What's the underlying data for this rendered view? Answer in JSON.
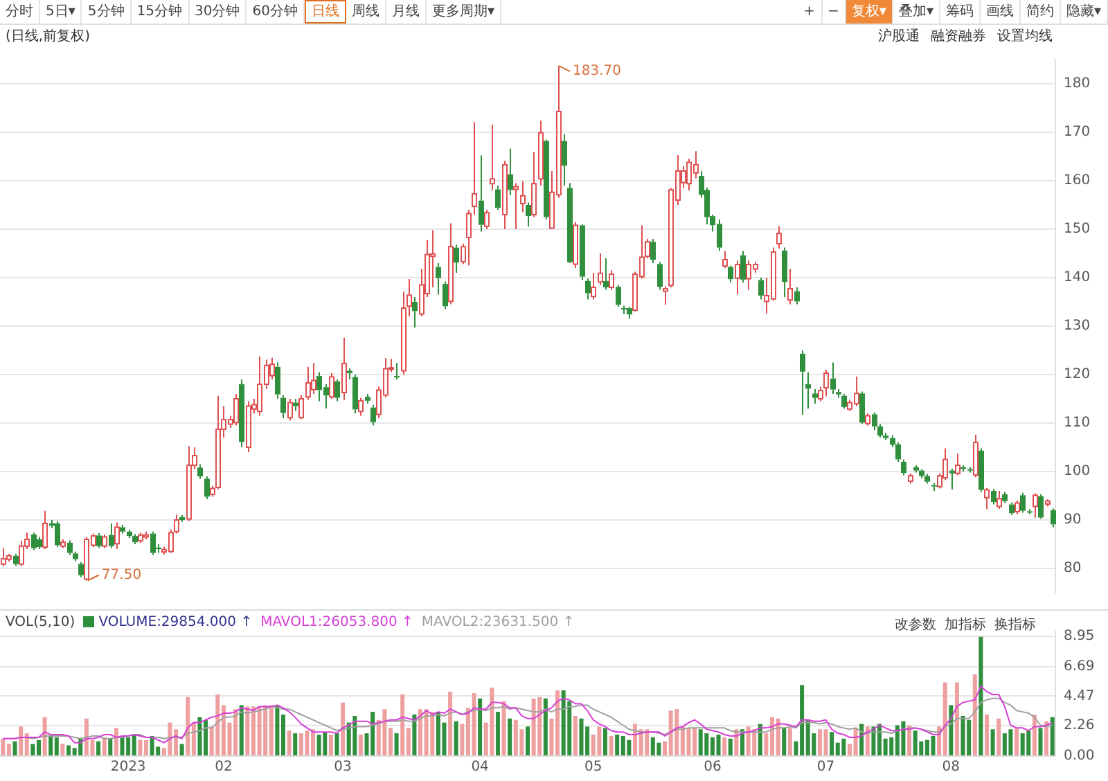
{
  "chart_data": [
    {
      "type": "candlestick",
      "title": "(日线,前复权)",
      "categories": [
        null,
        null,
        null,
        null,
        null,
        null,
        null,
        null,
        null,
        null,
        null,
        null,
        null,
        null,
        null,
        null,
        null,
        null,
        null,
        null,
        null,
        null,
        null,
        null,
        null,
        null,
        null,
        null,
        null,
        null,
        null,
        null,
        null,
        null,
        null,
        null,
        null,
        null,
        null,
        null,
        null,
        null,
        null,
        null,
        null,
        null,
        null,
        null,
        null,
        null,
        null,
        null,
        null,
        null,
        null,
        null,
        null,
        null,
        null,
        null,
        null,
        null,
        null,
        null,
        null,
        null,
        null,
        null,
        null,
        null,
        null,
        null,
        null,
        null,
        null,
        null,
        null,
        null,
        null,
        null,
        null,
        null,
        null,
        null,
        null,
        null,
        null,
        null,
        null,
        null,
        null,
        null,
        null,
        null,
        null,
        null,
        null,
        null,
        null,
        null,
        null,
        null,
        null,
        null,
        null,
        null,
        null,
        null,
        null,
        null,
        null,
        null,
        null,
        null,
        null,
        null,
        null,
        null,
        null,
        null,
        null,
        null,
        null,
        null,
        null,
        null,
        null,
        null,
        null,
        null,
        null,
        null,
        null,
        null,
        null,
        null,
        null,
        null,
        null,
        null,
        null,
        null,
        null,
        null,
        null,
        null,
        null,
        null,
        null,
        null,
        null,
        null,
        null,
        null,
        null,
        null,
        null,
        null,
        null,
        null,
        null,
        null,
        null,
        null,
        null,
        null,
        null,
        null,
        null,
        null,
        null,
        null,
        null,
        null,
        null,
        null,
        null
      ],
      "ohlc": [
        [
          80.9,
          84.2,
          80.4,
          82.0
        ],
        [
          81.9,
          83.0,
          81.4,
          82.6
        ],
        [
          82.6,
          83.0,
          80.5,
          80.9
        ],
        [
          80.9,
          85.7,
          80.5,
          84.6
        ],
        [
          84.6,
          87.4,
          84.0,
          86.0
        ],
        [
          87.0,
          87.4,
          83.8,
          84.2
        ],
        [
          86.0,
          86.5,
          84.0,
          84.4
        ],
        [
          84.4,
          91.9,
          84.0,
          89.3
        ],
        [
          89.3,
          90.0,
          88.3,
          88.8
        ],
        [
          89.3,
          89.8,
          84.4,
          84.8
        ],
        [
          84.6,
          86.0,
          84.2,
          85.4
        ],
        [
          85.3,
          85.8,
          82.8,
          83.2
        ],
        [
          83.1,
          83.5,
          81.5,
          81.9
        ],
        [
          80.9,
          81.3,
          78.2,
          78.6
        ],
        [
          77.8,
          86.5,
          77.5,
          86.0
        ],
        [
          84.8,
          87.2,
          84.4,
          86.7
        ],
        [
          86.8,
          87.3,
          84.2,
          84.6
        ],
        [
          84.6,
          87.0,
          84.2,
          86.5
        ],
        [
          86.9,
          89.3,
          84.2,
          84.6
        ],
        [
          85.1,
          89.5,
          84.0,
          88.5
        ],
        [
          88.5,
          89.0,
          87.2,
          87.6
        ],
        [
          87.6,
          88.0,
          86.3,
          86.7
        ],
        [
          86.7,
          87.1,
          85.0,
          85.4
        ],
        [
          85.7,
          87.4,
          85.3,
          86.9
        ],
        [
          86.5,
          87.6,
          86.0,
          86.9
        ],
        [
          87.2,
          87.6,
          82.8,
          83.2
        ],
        [
          84.3,
          85.0,
          83.2,
          84.0
        ],
        [
          83.4,
          84.5,
          82.9,
          83.9
        ],
        [
          83.5,
          88.0,
          83.2,
          87.4
        ],
        [
          87.6,
          91.1,
          87.2,
          90.0
        ],
        [
          90.6,
          91.0,
          89.6,
          90.0
        ],
        [
          90.2,
          105.2,
          89.8,
          101.3
        ],
        [
          101.3,
          105.0,
          100.5,
          103.3
        ],
        [
          100.8,
          101.5,
          98.5,
          99.0
        ],
        [
          98.5,
          99.0,
          94.3,
          94.8
        ],
        [
          95.3,
          97.0,
          94.8,
          96.5
        ],
        [
          96.7,
          115.6,
          96.3,
          108.7
        ],
        [
          108.7,
          113.5,
          107.0,
          110.7
        ],
        [
          109.8,
          111.5,
          109.0,
          110.7
        ],
        [
          110.1,
          116.0,
          109.5,
          115.0
        ],
        [
          118.0,
          119.0,
          105.0,
          106.1
        ],
        [
          105.0,
          114.5,
          104.0,
          113.5
        ],
        [
          112.9,
          115.0,
          112.0,
          113.8
        ],
        [
          112.4,
          123.7,
          111.5,
          118.0
        ],
        [
          118.0,
          123.1,
          117.0,
          121.9
        ],
        [
          119.8,
          123.5,
          119.0,
          122.1
        ],
        [
          121.6,
          122.5,
          115.0,
          115.9
        ],
        [
          115.2,
          115.8,
          111.0,
          112.1
        ],
        [
          111.1,
          115.0,
          110.5,
          114.2
        ],
        [
          114.2,
          115.0,
          112.5,
          113.5
        ],
        [
          111.1,
          115.8,
          110.8,
          115.0
        ],
        [
          115.4,
          121.6,
          114.8,
          118.3
        ],
        [
          116.9,
          122.4,
          116.0,
          118.8
        ],
        [
          119.7,
          120.5,
          114.5,
          116.8
        ],
        [
          117.4,
          118.0,
          113.0,
          115.7
        ],
        [
          115.4,
          120.3,
          115.0,
          119.5
        ],
        [
          118.6,
          119.0,
          114.5,
          115.2
        ],
        [
          116.3,
          127.6,
          114.8,
          122.3
        ],
        [
          120.8,
          121.3,
          119.0,
          120.3
        ],
        [
          119.5,
          120.0,
          112.0,
          112.8
        ],
        [
          112.4,
          115.2,
          111.5,
          114.6
        ],
        [
          115.4,
          116.0,
          114.0,
          114.6
        ],
        [
          113.2,
          113.8,
          109.5,
          110.2
        ],
        [
          111.8,
          117.5,
          111.0,
          116.8
        ],
        [
          115.8,
          123.4,
          115.3,
          121.2
        ],
        [
          121.2,
          123.2,
          120.5,
          121.4
        ],
        [
          119.7,
          122.4,
          119.0,
          119.5
        ],
        [
          120.8,
          137.1,
          120.0,
          133.7
        ],
        [
          134.1,
          139.7,
          132.0,
          136.4
        ],
        [
          135.0,
          136.0,
          129.7,
          133.1
        ],
        [
          132.5,
          141.8,
          132.0,
          138.5
        ],
        [
          136.7,
          147.8,
          136.0,
          144.8
        ],
        [
          144.4,
          149.8,
          138.0,
          144.9
        ],
        [
          142.2,
          143.0,
          136.5,
          139.9
        ],
        [
          138.7,
          139.2,
          133.5,
          134.1
        ],
        [
          135.1,
          151.2,
          134.5,
          146.4
        ],
        [
          146.2,
          146.8,
          141.0,
          143.1
        ],
        [
          143.3,
          147.0,
          142.8,
          146.4
        ],
        [
          148.3,
          154.0,
          142.5,
          153.2
        ],
        [
          154.7,
          172.1,
          153.0,
          157.3
        ],
        [
          155.9,
          165.2,
          149.5,
          150.9
        ],
        [
          150.6,
          154.0,
          150.0,
          153.4
        ],
        [
          159.4,
          171.5,
          158.0,
          160.4
        ],
        [
          158.2,
          159.0,
          154.0,
          154.4
        ],
        [
          153.0,
          164.1,
          150.0,
          163.3
        ],
        [
          161.3,
          166.6,
          157.0,
          158.1
        ],
        [
          158.2,
          159.5,
          150.0,
          158.8
        ],
        [
          155.3,
          159.9,
          153.5,
          156.9
        ],
        [
          155.0,
          155.5,
          150.5,
          152.7
        ],
        [
          153.0,
          165.9,
          152.5,
          159.4
        ],
        [
          160.4,
          172.4,
          159.0,
          169.9
        ],
        [
          168.2,
          168.5,
          152.0,
          152.5
        ],
        [
          150.2,
          162.0,
          150.0,
          157.6
        ],
        [
          157.1,
          183.7,
          156.5,
          174.3
        ],
        [
          168.2,
          169.6,
          159.0,
          163.1
        ],
        [
          158.5,
          159.5,
          143.0,
          143.2
        ],
        [
          142.8,
          151.5,
          142.0,
          150.8
        ],
        [
          150.8,
          151.0,
          139.5,
          140.2
        ],
        [
          139.3,
          139.8,
          135.5,
          136.8
        ],
        [
          136.1,
          141.0,
          135.5,
          138.0
        ],
        [
          139.1,
          145.0,
          138.5,
          140.9
        ],
        [
          139.3,
          144.0,
          137.5,
          138.0
        ],
        [
          138.0,
          141.5,
          137.5,
          140.7
        ],
        [
          138.1,
          138.5,
          134.0,
          134.4
        ],
        [
          133.7,
          134.2,
          132.5,
          133.5
        ],
        [
          133.7,
          134.0,
          131.5,
          132.4
        ],
        [
          133.3,
          141.2,
          133.0,
          140.7
        ],
        [
          140.2,
          150.8,
          139.8,
          144.2
        ],
        [
          144.4,
          148.0,
          144.0,
          147.4
        ],
        [
          147.4,
          148.0,
          143.0,
          143.7
        ],
        [
          142.8,
          143.2,
          137.5,
          138.1
        ],
        [
          137.2,
          138.2,
          134.4,
          137.7
        ],
        [
          138.4,
          158.5,
          138.0,
          158.1
        ],
        [
          156.0,
          165.3,
          155.0,
          162.0
        ],
        [
          159.6,
          163.0,
          158.5,
          162.0
        ],
        [
          159.4,
          164.5,
          158.0,
          163.8
        ],
        [
          161.6,
          166.1,
          160.5,
          163.3
        ],
        [
          161.0,
          162.0,
          156.5,
          157.1
        ],
        [
          158.1,
          158.6,
          151.0,
          152.5
        ],
        [
          152.7,
          153.0,
          149.5,
          150.8
        ],
        [
          151.1,
          152.0,
          145.5,
          146.2
        ],
        [
          142.4,
          145.5,
          142.0,
          143.7
        ],
        [
          142.2,
          142.5,
          139.0,
          139.7
        ],
        [
          139.9,
          143.5,
          136.5,
          142.7
        ],
        [
          144.6,
          145.5,
          139.0,
          139.6
        ],
        [
          139.8,
          143.5,
          137.5,
          142.7
        ],
        [
          141.8,
          143.2,
          141.0,
          142.7
        ],
        [
          139.5,
          140.0,
          135.5,
          136.3
        ],
        [
          135.1,
          140.0,
          132.6,
          136.3
        ],
        [
          135.6,
          146.2,
          135.2,
          145.3
        ],
        [
          147.0,
          150.6,
          146.0,
          149.1
        ],
        [
          145.6,
          146.2,
          136.0,
          139.1
        ],
        [
          135.4,
          141.8,
          134.5,
          137.7
        ],
        [
          137.2,
          138.0,
          134.5,
          135.1
        ],
        [
          124.3,
          125.0,
          111.7,
          120.6
        ],
        [
          118.0,
          120.5,
          113.0,
          117.1
        ],
        [
          116.1,
          117.0,
          114.0,
          115.2
        ],
        [
          115.0,
          117.5,
          114.5,
          116.7
        ],
        [
          117.3,
          121.0,
          115.5,
          120.3
        ],
        [
          119.2,
          122.5,
          116.0,
          116.9
        ],
        [
          116.4,
          117.0,
          115.2,
          115.9
        ],
        [
          115.6,
          116.0,
          113.0,
          113.3
        ],
        [
          112.9,
          114.8,
          112.5,
          114.2
        ],
        [
          114.0,
          119.6,
          113.5,
          116.1
        ],
        [
          116.1,
          116.5,
          109.8,
          110.1
        ],
        [
          109.9,
          112.0,
          109.5,
          111.5
        ],
        [
          111.8,
          112.2,
          108.5,
          109.3
        ],
        [
          109.3,
          109.8,
          107.0,
          107.4
        ],
        [
          107.4,
          108.0,
          106.5,
          106.9
        ],
        [
          106.9,
          107.5,
          105.0,
          105.5
        ],
        [
          105.6,
          106.0,
          102.0,
          102.5
        ],
        [
          102.0,
          102.5,
          99.2,
          99.7
        ],
        [
          98.0,
          99.6,
          97.5,
          99.1
        ],
        [
          100.9,
          101.3,
          99.8,
          100.2
        ],
        [
          100.2,
          100.5,
          98.6,
          99.1
        ],
        [
          99.1,
          99.5,
          97.5,
          97.9
        ],
        [
          97.2,
          97.6,
          96.0,
          96.9
        ],
        [
          96.9,
          99.6,
          96.5,
          99.1
        ],
        [
          98.7,
          104.8,
          98.2,
          102.5
        ],
        [
          100.2,
          100.6,
          96.3,
          99.6
        ],
        [
          99.6,
          103.7,
          99.2,
          101.3
        ],
        [
          100.9,
          101.3,
          100.0,
          100.5
        ],
        [
          100.5,
          100.9,
          99.8,
          100.3
        ],
        [
          99.3,
          107.6,
          98.8,
          106.0
        ],
        [
          104.3,
          104.8,
          95.8,
          96.2
        ],
        [
          94.6,
          96.6,
          92.2,
          96.2
        ],
        [
          96.0,
          96.4,
          93.2,
          93.7
        ],
        [
          92.8,
          96.0,
          92.3,
          94.4
        ],
        [
          95.3,
          95.8,
          93.5,
          93.9
        ],
        [
          93.2,
          93.6,
          91.0,
          91.4
        ],
        [
          91.7,
          94.0,
          91.2,
          93.5
        ],
        [
          95.1,
          95.6,
          91.5,
          91.9
        ],
        [
          91.8,
          92.2,
          91.2,
          91.6
        ],
        [
          92.8,
          95.5,
          90.5,
          95.1
        ],
        [
          94.9,
          95.3,
          90.2,
          90.5
        ],
        [
          93.3,
          94.3,
          92.8,
          93.9
        ],
        [
          92.0,
          92.4,
          88.5,
          89.1
        ]
      ],
      "ylim": [
        75,
        185
      ],
      "yticks": [
        80,
        90,
        100,
        110,
        120,
        130,
        140,
        150,
        160,
        170,
        180
      ],
      "grid": "y",
      "tick_labels": "y",
      "annotations": [
        "分时",
        "5日▾",
        "5分钟",
        "15分钟",
        "30分钟",
        "60分钟",
        "日线",
        "周线",
        "月线",
        "更多周期▾",
        "+",
        "−",
        "复权▾",
        "叠加▾",
        "筹码",
        "画线",
        "简约",
        "隐藏▾",
        "沪股通",
        "融资融券",
        "设置均线",
        "183.70",
        "77.50"
      ]
    },
    {
      "type": "bar",
      "legend_title": "VOL(5,10)",
      "legend": "top left",
      "grid": "y",
      "categories": [
        null,
        null,
        null,
        null,
        null,
        null,
        null,
        null,
        null,
        null,
        null,
        null,
        null,
        null,
        null,
        null,
        null,
        null,
        null,
        null,
        null,
        "2023",
        null,
        null,
        null,
        null,
        null,
        null,
        null,
        null,
        null,
        null,
        null,
        null,
        null,
        null,
        null,
        "02",
        null,
        null,
        null,
        null,
        null,
        null,
        null,
        null,
        null,
        null,
        null,
        null,
        null,
        null,
        null,
        null,
        null,
        null,
        null,
        "03",
        null,
        null,
        null,
        null,
        null,
        null,
        null,
        null,
        null,
        null,
        null,
        null,
        null,
        null,
        null,
        null,
        null,
        null,
        null,
        null,
        null,
        null,
        "04",
        null,
        null,
        null,
        null,
        null,
        null,
        null,
        null,
        null,
        null,
        null,
        null,
        null,
        null,
        null,
        null,
        null,
        null,
        "05",
        null,
        null,
        null,
        null,
        null,
        null,
        null,
        null,
        null,
        null,
        null,
        null,
        null,
        null,
        null,
        null,
        null,
        null,
        null,
        "06",
        null,
        null,
        null,
        null,
        null,
        null,
        null,
        null,
        null,
        null,
        null,
        null,
        null,
        null,
        null,
        null,
        null,
        null,
        "07",
        null,
        null,
        null,
        null,
        null,
        null,
        null,
        null,
        null,
        null,
        null,
        null,
        null,
        null,
        null,
        null,
        null,
        null,
        null,
        null,
        "08",
        null,
        null,
        null,
        null,
        null,
        null,
        null,
        null,
        null,
        null,
        null,
        null,
        null,
        null,
        null,
        null,
        null
      ],
      "series": [
        {
          "name": "VOLUME:29854.000 ↑",
          "type": "bar",
          "colors": [
            "#eea0a0",
            "#eea0a0",
            "#2f8f3c",
            "#eea0a0",
            "#eea0a0",
            "#2f8f3c",
            "#2f8f3c",
            "#eea0a0",
            "#2f8f3c",
            "#2f8f3c",
            "#eea0a0",
            "#2f8f3c",
            "#2f8f3c",
            "#2f8f3c",
            "#eea0a0",
            "#eea0a0",
            "#2f8f3c",
            "#eea0a0",
            "#2f8f3c",
            "#eea0a0",
            "#2f8f3c",
            "#2f8f3c",
            "#2f8f3c",
            "#eea0a0",
            "#eea0a0",
            "#2f8f3c",
            "#2f8f3c",
            "#eea0a0",
            "#eea0a0",
            "#eea0a0",
            "#2f8f3c",
            "#eea0a0",
            "#eea0a0",
            "#2f8f3c",
            "#2f8f3c",
            "#eea0a0",
            "#eea0a0",
            "#eea0a0",
            "#eea0a0",
            "#eea0a0",
            "#2f8f3c",
            "#eea0a0",
            "#eea0a0",
            "#eea0a0",
            "#eea0a0",
            "#eea0a0",
            "#2f8f3c",
            "#2f8f3c",
            "#eea0a0",
            "#2f8f3c",
            "#eea0a0",
            "#eea0a0",
            "#eea0a0",
            "#2f8f3c",
            "#2f8f3c",
            "#eea0a0",
            "#2f8f3c",
            "#eea0a0",
            "#2f8f3c",
            "#2f8f3c",
            "#eea0a0",
            "#2f8f3c",
            "#2f8f3c",
            "#eea0a0",
            "#eea0a0",
            "#eea0a0",
            "#2f8f3c",
            "#eea0a0",
            "#eea0a0",
            "#2f8f3c",
            "#eea0a0",
            "#eea0a0",
            "#eea0a0",
            "#2f8f3c",
            "#2f8f3c",
            "#eea0a0",
            "#2f8f3c",
            "#eea0a0",
            "#eea0a0",
            "#eea0a0",
            "#2f8f3c",
            "#eea0a0",
            "#eea0a0",
            "#2f8f3c",
            "#eea0a0",
            "#2f8f3c",
            "#eea0a0",
            "#eea0a0",
            "#2f8f3c",
            "#eea0a0",
            "#eea0a0",
            "#2f8f3c",
            "#eea0a0",
            "#eea0a0",
            "#2f8f3c",
            "#2f8f3c",
            "#eea0a0",
            "#2f8f3c",
            "#2f8f3c",
            "#eea0a0",
            "#eea0a0",
            "#2f8f3c",
            "#eea0a0",
            "#2f8f3c",
            "#2f8f3c",
            "#2f8f3c",
            "#eea0a0",
            "#eea0a0",
            "#eea0a0",
            "#2f8f3c",
            "#2f8f3c",
            "#eea0a0",
            "#eea0a0",
            "#eea0a0",
            "#eea0a0",
            "#eea0a0",
            "#eea0a0",
            "#2f8f3c",
            "#2f8f3c",
            "#2f8f3c",
            "#2f8f3c",
            "#eea0a0",
            "#2f8f3c",
            "#eea0a0",
            "#2f8f3c",
            "#eea0a0",
            "#eea0a0",
            "#2f8f3c",
            "#eea0a0",
            "#eea0a0",
            "#eea0a0",
            "#2f8f3c",
            "#eea0a0",
            "#2f8f3c",
            "#2f8f3c",
            "#2f8f3c",
            "#2f8f3c",
            "#eea0a0",
            "#eea0a0",
            "#2f8f3c",
            "#2f8f3c",
            "#2f8f3c",
            "#eea0a0",
            "#eea0a0",
            "#2f8f3c",
            "#eea0a0",
            "#2f8f3c",
            "#2f8f3c",
            "#2f8f3c",
            "#2f8f3c",
            "#2f8f3c",
            "#2f8f3c",
            "#eea0a0",
            "#2f8f3c",
            "#2f8f3c",
            "#2f8f3c",
            "#2f8f3c",
            "#eea0a0",
            "#eea0a0",
            "#2f8f3c",
            "#eea0a0",
            "#2f8f3c",
            "#2f8f3c",
            "#eea0a0",
            "#2f8f3c",
            "#eea0a0",
            "#2f8f3c",
            "#eea0a0",
            "#2f8f3c",
            "#2f8f3c",
            "#eea0a0",
            "#2f8f3c",
            "#2f8f3c",
            "#eea0a0",
            "#2f8f3c",
            "#eea0a0",
            "#2f8f3c"
          ],
          "values": [
            1.3,
            0.9,
            1.1,
            2.2,
            1.7,
            0.9,
            1.2,
            2.9,
            1.5,
            1.4,
            0.9,
            0.8,
            0.6,
            1.3,
            2.8,
            1.2,
            1.1,
            1.4,
            1.3,
            2.1,
            1.4,
            1.4,
            1.6,
            1.2,
            1.2,
            1.5,
            0.7,
            0.6,
            2.5,
            2.0,
            0.9,
            4.4,
            2.5,
            2.9,
            2.7,
            2.2,
            4.6,
            3.8,
            2.5,
            3.5,
            3.8,
            3.7,
            3.7,
            3.7,
            3.8,
            3.8,
            3.8,
            3.1,
            1.9,
            1.7,
            1.7,
            1.9,
            2.0,
            1.6,
            1.8,
            1.6,
            1.7,
            4.0,
            2.5,
            3.0,
            1.6,
            1.7,
            3.3,
            2.7,
            3.5,
            2.1,
            1.7,
            4.6,
            2.1,
            3.1,
            3.5,
            3.5,
            3.3,
            3.3,
            2.5,
            4.8,
            2.6,
            2.4,
            3.6,
            4.7,
            4.3,
            2.5,
            5.1,
            3.3,
            4.1,
            2.8,
            2.7,
            2.0,
            2.2,
            4.3,
            4.4,
            4.3,
            2.8,
            4.9,
            4.9,
            4.1,
            3.0,
            2.8,
            2.2,
            1.6,
            2.2,
            2.1,
            1.5,
            1.6,
            1.5,
            1.2,
            2.4,
            2.0,
            2.0,
            1.4,
            1.0,
            1.1,
            3.4,
            3.5,
            2.2,
            2.1,
            2.1,
            2.0,
            1.7,
            1.4,
            1.6,
            1.4,
            1.3,
            2.0,
            2.0,
            2.2,
            2.0,
            2.4,
            1.7,
            2.9,
            2.8,
            2.1,
            2.1,
            1.1,
            5.3,
            2.7,
            1.7,
            2.0,
            2.0,
            1.8,
            1.0,
            1.3,
            0.9,
            2.1,
            2.4,
            2.2,
            2.2,
            2.4,
            1.3,
            1.4,
            2.3,
            2.6,
            2.3,
            1.9,
            1.1,
            1.2,
            1.5,
            2.2,
            5.5,
            3.8,
            5.5,
            3.0,
            2.7,
            6.1,
            8.9,
            3.1,
            2.0,
            2.8,
            1.7,
            2.0,
            2.1,
            1.7,
            1.9,
            3.1,
            2.1,
            2.6,
            2.9
          ]
        },
        {
          "name": "MAVOL1:26053.800 ↑",
          "type": "line",
          "color": "#d63fd6",
          "values": [
            1.3,
            1.3,
            1.3,
            1.4,
            1.4,
            1.4,
            1.4,
            1.8,
            1.6,
            1.6,
            1.6,
            1.5,
            1.0,
            1.0,
            1.3,
            1.3,
            1.4,
            1.6,
            1.6,
            1.4,
            1.5,
            1.5,
            1.6,
            1.5,
            1.4,
            1.4,
            1.2,
            1.0,
            1.3,
            1.5,
            1.3,
            2.1,
            2.5,
            2.5,
            2.7,
            2.9,
            3.0,
            3.2,
            3.2,
            3.3,
            3.6,
            3.5,
            3.4,
            3.7,
            3.7,
            3.7,
            3.8,
            3.6,
            3.3,
            2.9,
            2.4,
            2.1,
            1.8,
            1.8,
            1.8,
            1.8,
            1.7,
            2.1,
            2.3,
            2.6,
            2.6,
            2.6,
            2.4,
            2.5,
            2.6,
            2.7,
            2.7,
            2.9,
            2.8,
            2.7,
            3.0,
            3.4,
            3.1,
            3.3,
            3.2,
            3.5,
            3.3,
            3.1,
            3.2,
            3.6,
            3.5,
            3.5,
            4.0,
            4.0,
            3.9,
            3.6,
            3.6,
            3.0,
            2.8,
            2.8,
            3.1,
            3.4,
            3.6,
            4.1,
            4.3,
            4.2,
            3.9,
            3.9,
            3.4,
            2.7,
            2.4,
            2.2,
            1.9,
            1.8,
            1.8,
            1.6,
            1.6,
            1.7,
            1.8,
            1.8,
            1.8,
            1.5,
            1.8,
            2.1,
            2.2,
            2.5,
            2.7,
            2.4,
            2.0,
            1.9,
            1.8,
            1.6,
            1.5,
            1.5,
            1.7,
            1.8,
            1.9,
            2.1,
            2.1,
            2.2,
            2.4,
            2.4,
            2.3,
            2.2,
            2.7,
            2.7,
            2.6,
            2.6,
            2.7,
            2.0,
            1.7,
            1.6,
            1.4,
            1.4,
            1.5,
            1.8,
            2.0,
            2.3,
            2.1,
            1.9,
            1.9,
            2.0,
            2.0,
            2.1,
            2.0,
            1.8,
            1.6,
            1.6,
            2.3,
            2.8,
            3.7,
            4.0,
            4.1,
            4.2,
            5.2,
            4.8,
            4.6,
            4.6,
            3.7,
            2.3,
            2.1,
            2.1,
            1.9,
            2.2,
            2.2,
            2.3,
            2.5
          ]
        },
        {
          "name": "MAVOL2:23631.500 ↑",
          "type": "line",
          "color": "#a0a0a0",
          "values": [
            1.3,
            1.3,
            1.3,
            1.4,
            1.4,
            1.3,
            1.4,
            1.5,
            1.5,
            1.5,
            1.5,
            1.5,
            1.4,
            1.3,
            1.4,
            1.5,
            1.5,
            1.3,
            1.3,
            1.4,
            1.4,
            1.5,
            1.6,
            1.6,
            1.4,
            1.4,
            1.4,
            1.3,
            1.4,
            1.4,
            1.4,
            1.7,
            1.8,
            1.9,
            2.1,
            2.1,
            2.5,
            2.9,
            2.9,
            3.0,
            3.3,
            3.2,
            3.3,
            3.4,
            3.5,
            3.7,
            3.6,
            3.5,
            3.5,
            3.3,
            3.1,
            2.9,
            2.7,
            2.5,
            2.3,
            2.1,
            1.9,
            2.0,
            2.1,
            2.2,
            2.2,
            2.2,
            2.3,
            2.4,
            2.6,
            2.6,
            2.6,
            2.7,
            2.6,
            2.6,
            2.8,
            3.0,
            3.0,
            3.1,
            3.0,
            3.2,
            3.3,
            3.1,
            3.3,
            3.4,
            3.5,
            3.4,
            3.6,
            3.6,
            3.7,
            3.5,
            3.6,
            3.5,
            3.4,
            3.3,
            3.3,
            3.5,
            3.3,
            3.5,
            3.5,
            3.7,
            3.7,
            3.8,
            3.8,
            3.5,
            3.3,
            3.1,
            2.9,
            2.6,
            2.3,
            2.0,
            1.9,
            1.8,
            1.8,
            1.8,
            1.7,
            1.6,
            1.8,
            2.0,
            2.0,
            2.1,
            2.1,
            2.1,
            2.1,
            2.1,
            2.1,
            2.1,
            1.9,
            1.8,
            1.8,
            1.8,
            1.8,
            1.8,
            1.8,
            2.0,
            2.1,
            2.1,
            2.2,
            2.1,
            2.5,
            2.5,
            2.5,
            2.4,
            2.5,
            2.4,
            2.2,
            2.1,
            2.0,
            2.1,
            1.8,
            1.7,
            1.8,
            1.8,
            1.8,
            1.7,
            1.9,
            2.0,
            2.1,
            2.1,
            2.0,
            1.9,
            1.8,
            1.8,
            2.2,
            2.4,
            2.8,
            2.8,
            2.8,
            3.3,
            4.0,
            4.2,
            4.3,
            4.3,
            4.0,
            3.8,
            3.4,
            3.3,
            3.2,
            2.9,
            2.3,
            2.2,
            2.3
          ]
        }
      ],
      "ylim": [
        0,
        9.3
      ],
      "yticks": [
        {
          "value": 0,
          "label": "0.00"
        },
        {
          "value": 2.26,
          "label": "2.26"
        },
        {
          "value": 4.47,
          "label": "4.47"
        },
        {
          "value": 6.69,
          "label": "6.69"
        },
        {
          "value": 8.95,
          "label": "8.95"
        }
      ],
      "annotations": [
        "改参数",
        "加指标",
        "换指标"
      ]
    }
  ]
}
